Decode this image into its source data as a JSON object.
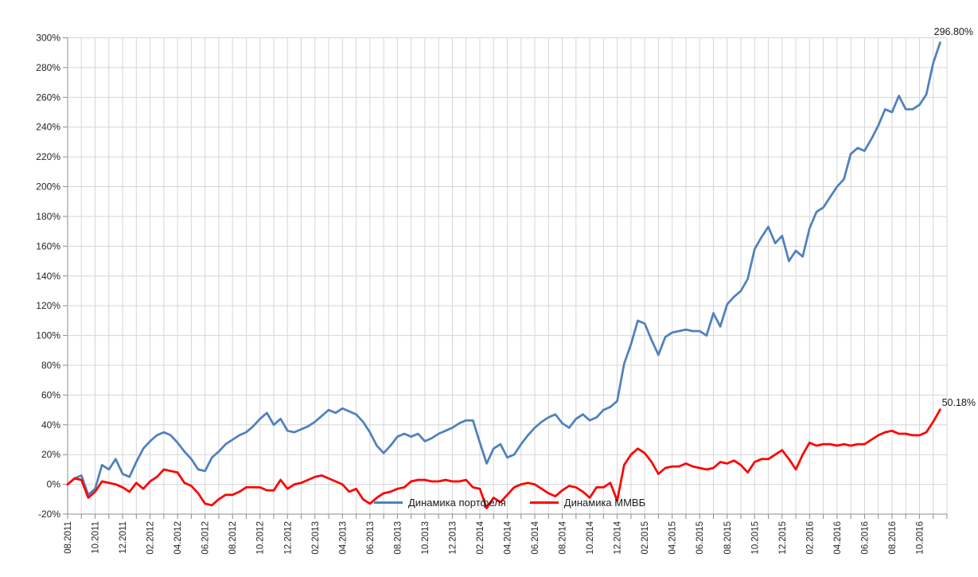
{
  "chart_data": {
    "type": "line",
    "title": "",
    "x_axis": {
      "unit": "month.year",
      "tick_labels": [
        "08.2011",
        "10.2011",
        "12.2011",
        "02.2012",
        "04.2012",
        "06.2012",
        "08.2012",
        "10.2012",
        "12.2012",
        "02.2013",
        "04.2013",
        "06.2013",
        "08.2013",
        "10.2013",
        "12.2013",
        "02.2014",
        "04.2014",
        "06.2014",
        "08.2014",
        "10.2014",
        "12.2014",
        "02.2015",
        "04.2015",
        "06.2015",
        "08.2015",
        "10.2015",
        "12.2015",
        "02.2016",
        "04.2016",
        "06.2016",
        "08.2016",
        "10.2016"
      ],
      "months_shown": 64,
      "gridline_every_months": 1,
      "label_every_months": 2
    },
    "y_axis": {
      "min": -20,
      "max": 300,
      "step": 20,
      "format": "percent",
      "tick_labels": [
        "300%",
        "280%",
        "260%",
        "240%",
        "220%",
        "200%",
        "180%",
        "160%",
        "140%",
        "120%",
        "100%",
        "80%",
        "60%",
        "40%",
        "20%",
        "0%",
        "-20%"
      ]
    },
    "grid": true,
    "legend_position": "inside-bottom-center",
    "series": [
      {
        "name": "Динамика портфеля",
        "color": "#4F81BD",
        "start": "08.2011",
        "points_per_month": 2,
        "values": [
          0,
          4,
          6,
          -7,
          -3,
          13,
          10,
          17,
          7,
          5,
          15,
          24,
          29,
          33,
          35,
          33,
          28,
          22,
          17,
          10,
          9,
          18,
          22,
          27,
          30,
          33,
          35,
          39,
          44,
          48,
          40,
          44,
          36,
          35,
          37,
          39,
          42,
          46,
          50,
          48,
          51,
          49,
          47,
          42,
          35,
          26,
          21,
          26,
          32,
          34,
          32,
          34,
          29,
          31,
          34,
          36,
          38,
          41,
          43,
          43,
          28,
          14,
          24,
          27,
          18,
          20,
          27,
          33,
          38,
          42,
          45,
          47,
          41,
          38,
          44,
          47,
          43,
          45,
          50,
          52,
          56,
          81,
          94,
          110,
          108,
          97,
          87,
          99,
          102,
          103,
          104,
          103,
          103,
          100,
          115,
          106,
          121,
          126,
          130,
          138,
          158,
          166,
          173,
          162,
          167,
          150,
          157,
          153,
          172,
          183,
          186,
          193,
          200,
          205,
          222,
          226,
          224,
          232,
          241,
          252,
          250,
          261,
          252,
          252,
          255,
          262,
          283,
          296.8
        ]
      },
      {
        "name": "Динамика ММВБ",
        "color": "#FF0000",
        "start": "08.2011",
        "points_per_month": 2,
        "values": [
          0,
          4,
          3,
          -9,
          -5,
          2,
          1,
          0,
          -2,
          -5,
          1,
          -3,
          2,
          5,
          10,
          9,
          8,
          1,
          -1,
          -6,
          -13,
          -14,
          -10,
          -7,
          -7,
          -5,
          -2,
          -2,
          -2,
          -4,
          -4,
          3,
          -3,
          0,
          1,
          3,
          5,
          6,
          4,
          2,
          0,
          -5,
          -3,
          -10,
          -13,
          -9,
          -6,
          -5,
          -3,
          -2,
          2,
          3,
          3,
          2,
          2,
          3,
          2,
          2,
          3,
          -2,
          -3,
          -16,
          -9,
          -12,
          -7,
          -2,
          0,
          1,
          0,
          -3,
          -6,
          -8,
          -4,
          -1,
          -2,
          -5,
          -9,
          -2,
          -2,
          1,
          -11,
          13,
          20,
          24,
          21,
          15,
          7,
          11,
          12,
          12,
          14,
          12,
          11,
          10,
          11,
          15,
          14,
          16,
          13,
          8,
          15,
          17,
          17,
          20,
          23,
          17,
          10,
          20,
          28,
          26,
          27,
          27,
          26,
          27,
          26,
          27,
          27,
          30,
          33,
          35,
          36,
          34,
          34,
          33,
          33,
          35,
          42,
          50.18
        ]
      }
    ],
    "end_labels": {
      "portfolio": "296.80%",
      "micex": "50.18%"
    }
  },
  "colors": {
    "background": "#FFFFFF",
    "gridline": "#D6D6D6",
    "axis": "#8C8C8C",
    "text": "#262626",
    "series_portfolio": "#4F81BD",
    "series_micex": "#FF0000"
  }
}
